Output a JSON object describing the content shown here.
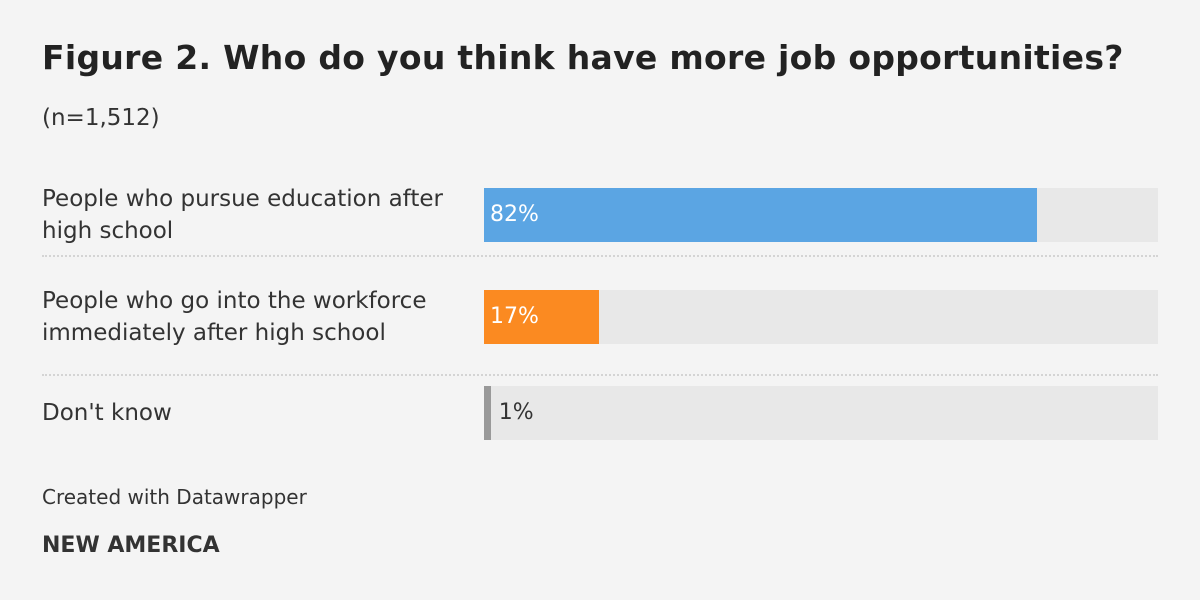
{
  "chart_data": {
    "type": "bar",
    "title": "Figure 2. Who do you think have more job opportunities?",
    "subtitle": "(n=1,512)",
    "categories": [
      "People who pursue education after high school",
      "People who go into the workforce immediately after high school",
      "Don't know"
    ],
    "values": [
      82,
      17,
      1
    ],
    "value_labels": [
      "82%",
      "17%",
      "1%"
    ],
    "colors": [
      "#5ba5e3",
      "#fb8a21",
      "#999999"
    ],
    "xlim": [
      0,
      100
    ],
    "credit": "Created with Datawrapper",
    "source": "NEW AMERICA"
  }
}
